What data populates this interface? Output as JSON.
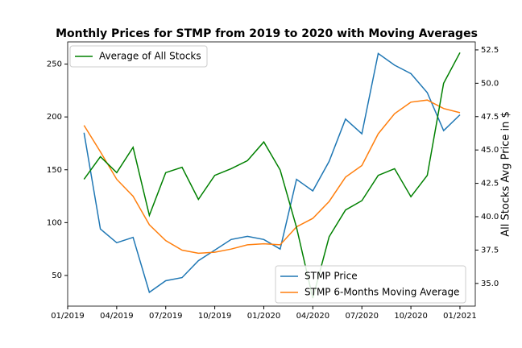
{
  "chart_data": {
    "type": "line",
    "title": "Monthly Prices for STMP from 2019 to 2020 with Moving Averages",
    "y2_label": "All Stocks Avg Price in $",
    "x": [
      "2019-01",
      "2019-02",
      "2019-03",
      "2019-04",
      "2019-05",
      "2019-06",
      "2019-07",
      "2019-08",
      "2019-09",
      "2019-10",
      "2019-11",
      "2019-12",
      "2020-01",
      "2020-02",
      "2020-03",
      "2020-04",
      "2020-05",
      "2020-06",
      "2020-07",
      "2020-08",
      "2020-09",
      "2020-10",
      "2020-11",
      "2020-12"
    ],
    "series": [
      {
        "name": "STMP Price",
        "color": "#1f77b4",
        "values": [
          185,
          94,
          81,
          86,
          34,
          45,
          48,
          64,
          74,
          84,
          87,
          84,
          75,
          141,
          130,
          158,
          198,
          184,
          260,
          249,
          241,
          223,
          187,
          202
        ]
      },
      {
        "name": "STMP 6-Months Moving Average",
        "color": "#ff7f0e",
        "values": [
          192,
          167,
          141,
          125,
          98,
          83,
          74,
          71,
          72,
          75,
          79,
          80,
          79,
          96,
          104,
          120,
          143,
          154,
          184,
          203,
          214,
          216,
          208,
          204
        ]
      },
      {
        "name": "Average of All Stocks",
        "color": "#008000",
        "axis": "y2",
        "values": [
          42.8,
          44.5,
          43.3,
          45.2,
          40.1,
          43.3,
          43.7,
          41.3,
          43.1,
          43.6,
          44.2,
          45.6,
          43.5,
          39.2,
          33.9,
          38.5,
          40.5,
          41.2,
          43.1,
          43.6,
          41.5,
          43.1,
          50.0,
          52.3
        ]
      }
    ],
    "xticks": [
      {
        "value": "2019-01",
        "label": "01/2019"
      },
      {
        "value": "2019-04",
        "label": "04/2019"
      },
      {
        "value": "2019-07",
        "label": "07/2019"
      },
      {
        "value": "2019-10",
        "label": "10/2019"
      },
      {
        "value": "2020-01",
        "label": "01/2020"
      },
      {
        "value": "2020-04",
        "label": "04/2020"
      },
      {
        "value": "2020-07",
        "label": "07/2020"
      },
      {
        "value": "2020-10",
        "label": "10/2020"
      },
      {
        "value": "2021-01",
        "label": "01/2021"
      }
    ],
    "ylim": [
      21,
      271
    ],
    "yticks": [
      50,
      100,
      150,
      200,
      250
    ],
    "y2lim": [
      33.3,
      53.1
    ],
    "y2ticks": [
      {
        "value": 35,
        "label": "35.0"
      },
      {
        "value": 37.5,
        "label": "37.5"
      },
      {
        "value": 40,
        "label": "40.0"
      },
      {
        "value": 42.5,
        "label": "42.5"
      },
      {
        "value": 45,
        "label": "45.0"
      },
      {
        "value": 47.5,
        "label": "47.5"
      },
      {
        "value": 50,
        "label": "50.0"
      },
      {
        "value": 52.5,
        "label": "52.5"
      }
    ],
    "legend": "lower right",
    "legend2": "upper left"
  }
}
